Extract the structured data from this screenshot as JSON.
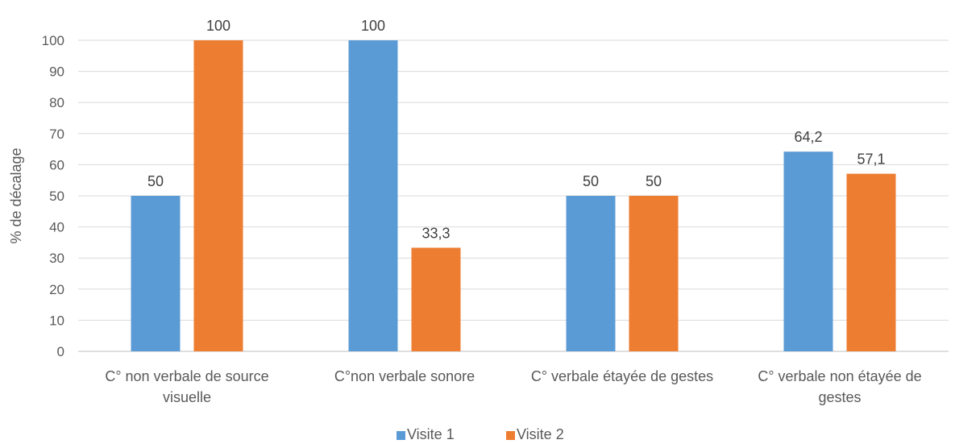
{
  "chart_data": {
    "type": "bar",
    "categories": [
      [
        "C° non verbale de source",
        "visuelle"
      ],
      [
        "C°non verbale sonore"
      ],
      [
        "C° verbale étayée de gestes"
      ],
      [
        "C° verbale non étayée de",
        "gestes"
      ]
    ],
    "series": [
      {
        "name": "Visite 1",
        "values": [
          50,
          100,
          50,
          64.2
        ],
        "labels": [
          "50",
          "100",
          "50",
          "64,2"
        ],
        "color": "#5B9BD5"
      },
      {
        "name": "Visite 2",
        "values": [
          100,
          33.3,
          50,
          57.1
        ],
        "labels": [
          "100",
          "33,3",
          "50",
          "57,1"
        ],
        "color": "#ED7D31"
      }
    ],
    "ylabel": "% de décalage",
    "ylim": [
      0,
      100
    ],
    "yticks": [
      0,
      10,
      20,
      30,
      40,
      50,
      60,
      70,
      80,
      90,
      100
    ],
    "grid": true,
    "legend_position": "bottom"
  }
}
